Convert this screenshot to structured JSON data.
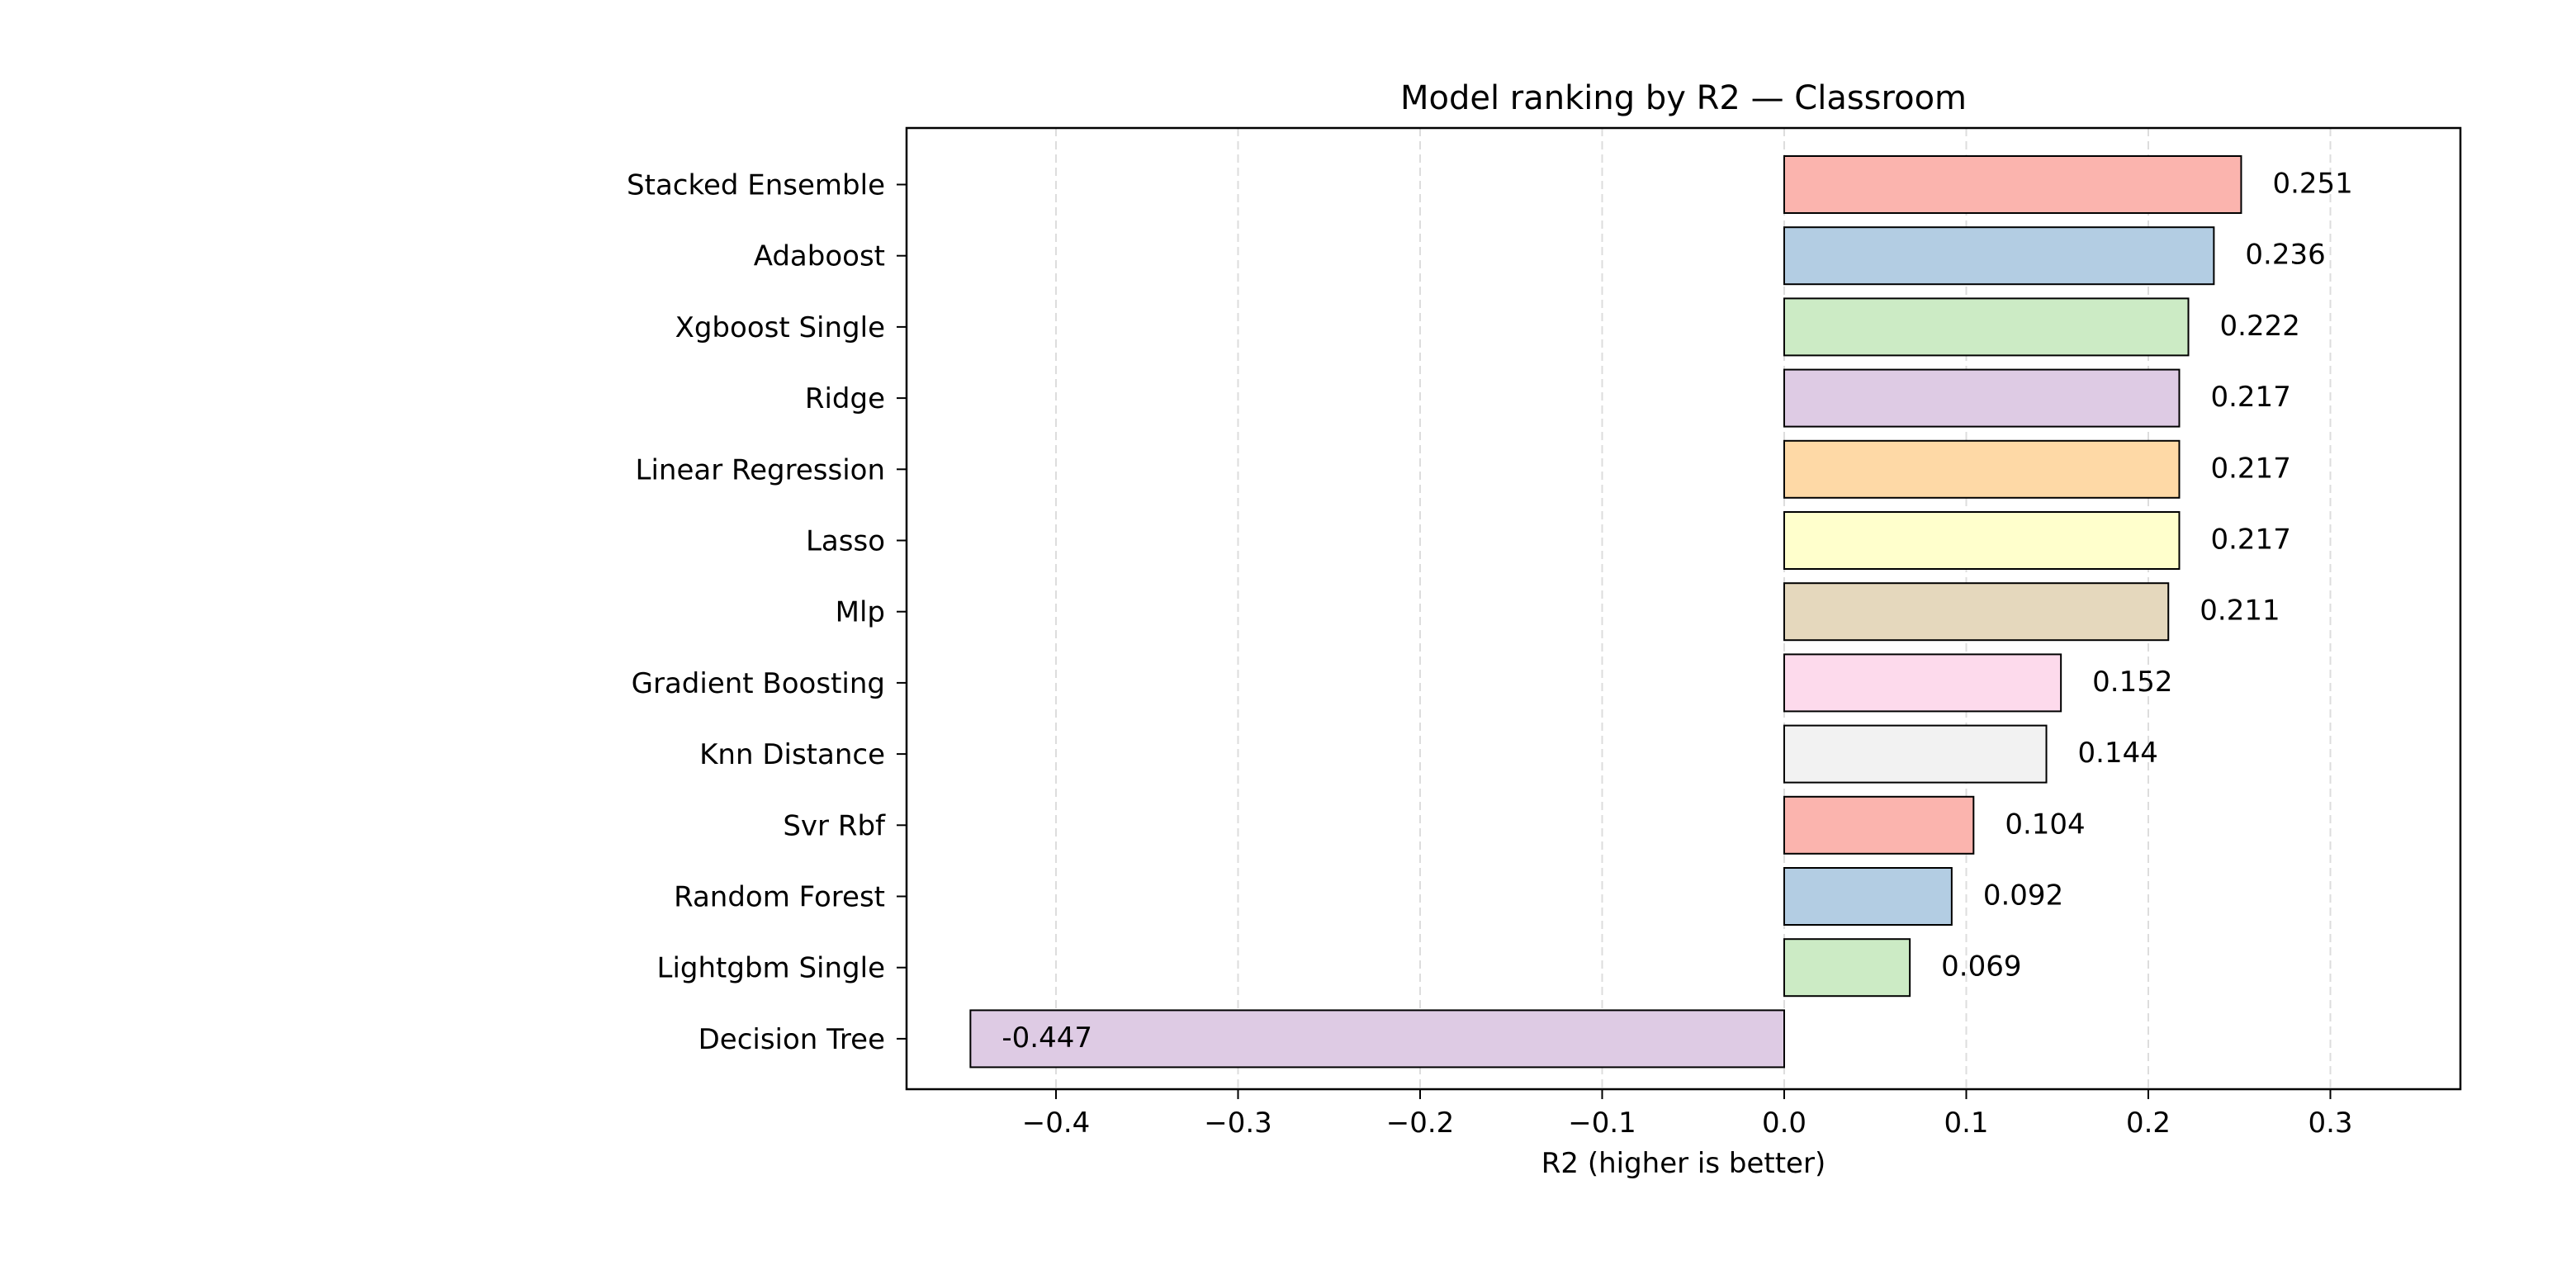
{
  "chart_data": {
    "type": "bar",
    "orientation": "horizontal",
    "title": "Model ranking by R2 — Classroom",
    "xlabel": "R2 (higher is better)",
    "ylabel": "",
    "xlim": [
      -0.48,
      0.37
    ],
    "xticks": [
      -0.4,
      -0.3,
      -0.2,
      -0.1,
      0.0,
      0.1,
      0.2,
      0.3
    ],
    "xtick_labels": [
      "−0.4",
      "−0.3",
      "−0.2",
      "−0.1",
      "0.0",
      "0.1",
      "0.2",
      "0.3"
    ],
    "grid": "x-dashed",
    "categories": [
      "Stacked Ensemble",
      "Adaboost",
      "Xgboost Single",
      "Ridge",
      "Linear Regression",
      "Lasso",
      "Mlp",
      "Gradient Boosting",
      "Knn Distance",
      "Svr Rbf",
      "Random Forest",
      "Lightgbm Single",
      "Decision Tree"
    ],
    "values": [
      0.251,
      0.236,
      0.222,
      0.217,
      0.217,
      0.217,
      0.211,
      0.152,
      0.144,
      0.104,
      0.092,
      0.069,
      -0.447
    ],
    "value_labels": [
      "0.251",
      "0.236",
      "0.222",
      "0.217",
      "0.217",
      "0.217",
      "0.211",
      "0.152",
      "0.144",
      "0.104",
      "0.092",
      "0.069",
      "-0.447"
    ],
    "colors": [
      "#fbb4ae",
      "#b3cde3",
      "#ccebc5",
      "#decbe4",
      "#fed9a6",
      "#ffffcc",
      "#e5d8bd",
      "#fddaec",
      "#f2f2f2",
      "#fbb4ae",
      "#b3cde3",
      "#ccebc5",
      "#decbe4"
    ]
  }
}
